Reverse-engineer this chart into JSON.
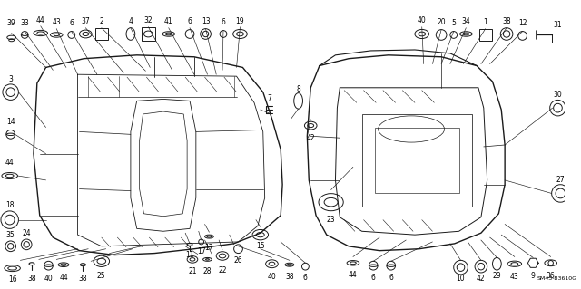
{
  "bg_color": "#ffffff",
  "diagram_code": "SM43-B3610G",
  "fig_width": 6.4,
  "fig_height": 3.19,
  "dpi": 100,
  "line_color": "#1a1a1a",
  "text_color": "#000000",
  "fs": 5.5
}
